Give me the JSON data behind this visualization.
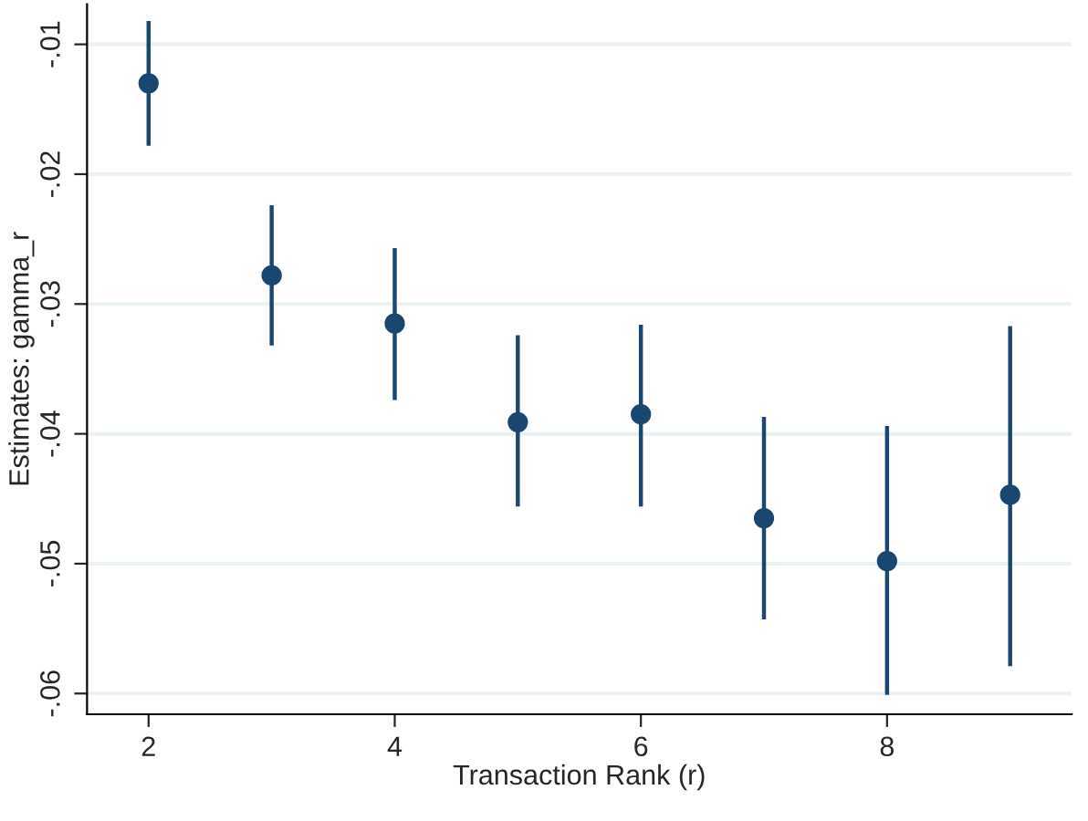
{
  "chart_data": {
    "type": "scatter",
    "xlabel": "Transaction Rank (r)",
    "ylabel": "Estimates: gamma_r",
    "x": [
      2,
      3,
      4,
      5,
      6,
      7,
      8,
      9
    ],
    "series": [
      {
        "color": "#1a476f",
        "values": [
          -0.013,
          -0.0278,
          -0.0315,
          -0.0391,
          -0.0385,
          -0.0465,
          -0.0498,
          -0.0447
        ],
        "errors": [
          [
            -0.0178,
            -0.0082
          ],
          [
            -0.0332,
            -0.0224
          ],
          [
            -0.0374,
            -0.0257
          ],
          [
            -0.0456,
            -0.0324
          ],
          [
            -0.0456,
            -0.0316
          ],
          [
            -0.0543,
            -0.0387
          ],
          [
            -0.0601,
            -0.0394
          ],
          [
            -0.0579,
            -0.0317
          ]
        ]
      }
    ],
    "xlim": [
      1.5,
      9.5
    ],
    "xticks": [
      2,
      4,
      6,
      8
    ],
    "ylim": [
      -0.0616,
      -0.0069
    ],
    "yticks": [
      {
        "value": -0.06,
        "label": "-.06"
      },
      {
        "value": -0.05,
        "label": "-.05"
      },
      {
        "value": -0.04,
        "label": "-.04"
      },
      {
        "value": -0.03,
        "label": "-.03"
      },
      {
        "value": -0.02,
        "label": "-.02"
      },
      {
        "value": -0.01,
        "label": "-.01"
      }
    ],
    "grid": "y",
    "marker": "circle"
  }
}
